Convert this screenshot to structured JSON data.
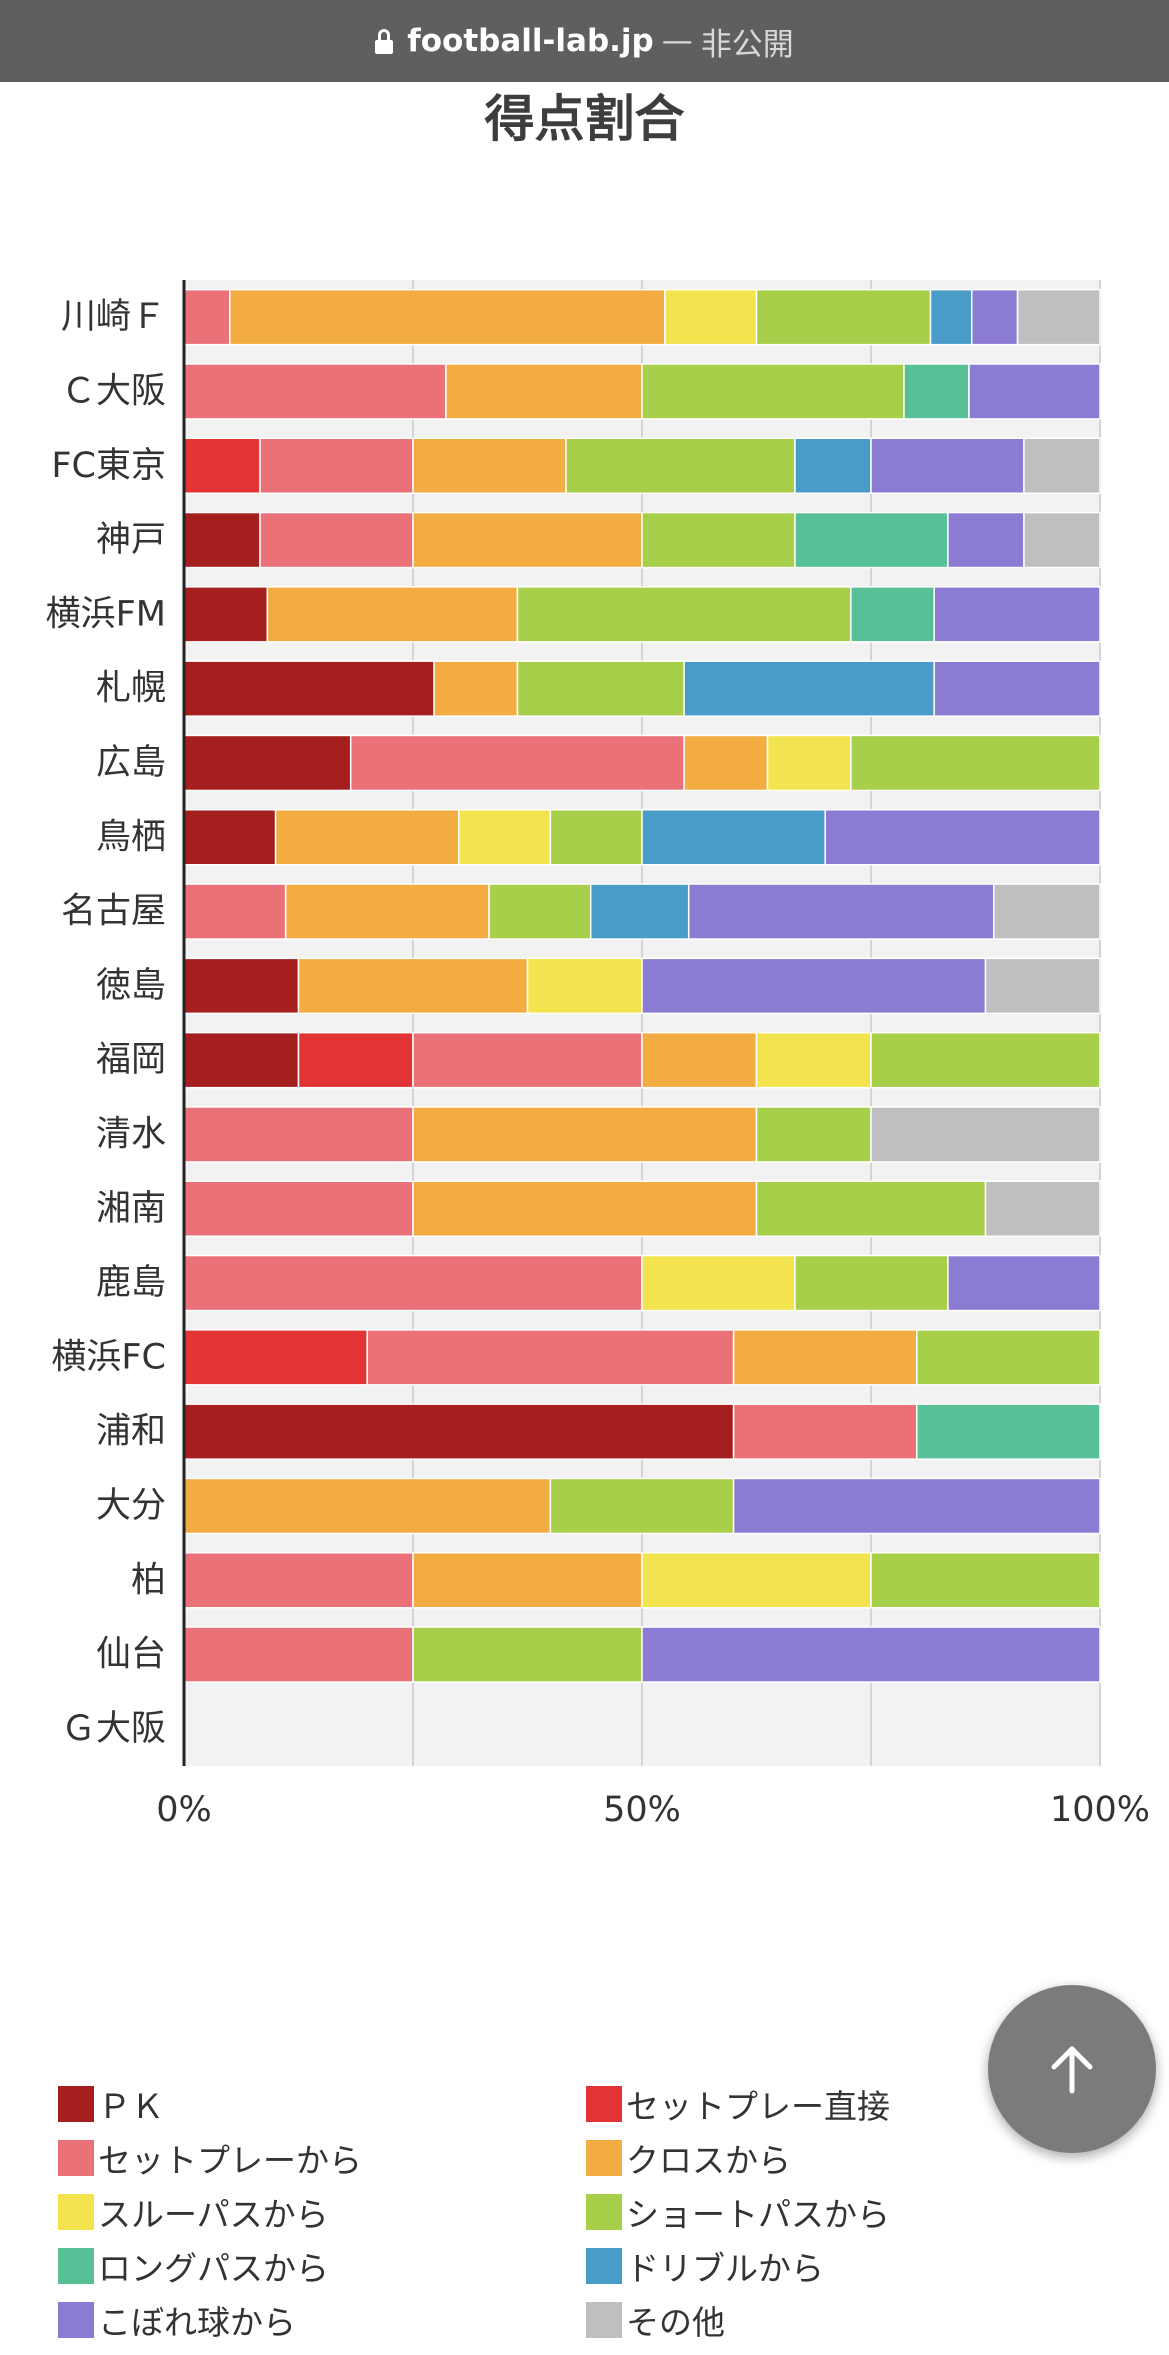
{
  "browser": {
    "domain": "football-lab.jp",
    "separator": "—",
    "status": "非公開"
  },
  "title": "得点割合",
  "chart_data": {
    "type": "bar",
    "orientation": "horizontal",
    "stacked": true,
    "normalized": true,
    "title": "得点割合",
    "xlim": [
      0,
      100
    ],
    "x_ticks": [
      "0%",
      "50%",
      "100%"
    ],
    "grid": true,
    "legend_position": "bottom",
    "categories": [
      "川崎Ｆ",
      "Ｃ大阪",
      "FC東京",
      "神戸",
      "横浜FM",
      "札幌",
      "広島",
      "鳥栖",
      "名古屋",
      "徳島",
      "福岡",
      "清水",
      "湘南",
      "鹿島",
      "横浜FC",
      "浦和",
      "大分",
      "柏",
      "仙台",
      "Ｇ大阪"
    ],
    "series": [
      {
        "name": "ＰＫ",
        "color": "#a61f1f",
        "values": [
          0,
          0,
          0,
          8.3,
          9.1,
          27.3,
          18.2,
          10,
          0,
          12.5,
          12.5,
          0,
          0,
          0,
          0,
          60,
          0,
          0,
          0,
          0
        ]
      },
      {
        "name": "セットプレー直接",
        "color": "#e23434",
        "values": [
          0,
          0,
          8.3,
          0,
          0,
          0,
          0,
          0,
          0,
          0,
          12.5,
          0,
          0,
          0,
          20,
          0,
          0,
          0,
          0,
          0
        ]
      },
      {
        "name": "セットプレーから",
        "color": "#ea7178",
        "values": [
          5,
          28.6,
          16.7,
          16.7,
          0,
          0,
          36.4,
          0,
          11.1,
          0,
          25,
          25,
          25,
          50,
          40,
          20,
          0,
          25,
          25,
          0
        ]
      },
      {
        "name": "クロスから",
        "color": "#f3ac41",
        "values": [
          47.5,
          21.4,
          16.7,
          25,
          27.3,
          9.1,
          9.1,
          20,
          22.2,
          25,
          12.5,
          37.5,
          37.5,
          0,
          20,
          0,
          40,
          25,
          0,
          0
        ]
      },
      {
        "name": "スルーパスから",
        "color": "#f2e34f",
        "values": [
          10,
          0,
          0,
          0,
          0,
          0,
          9.1,
          10,
          0,
          12.5,
          12.5,
          0,
          0,
          16.7,
          0,
          0,
          0,
          25,
          0,
          0
        ]
      },
      {
        "name": "ショートパスから",
        "color": "#a7cf4a",
        "values": [
          19,
          28.6,
          25,
          16.7,
          36.4,
          18.2,
          27.2,
          10,
          11.1,
          0,
          25,
          12.5,
          25,
          16.7,
          20,
          0,
          20,
          25,
          25,
          0
        ]
      },
      {
        "name": "ロングパスから",
        "color": "#58c096",
        "values": [
          0,
          7.1,
          0,
          16.7,
          9.1,
          0,
          0,
          0,
          0,
          0,
          0,
          0,
          0,
          0,
          0,
          20,
          0,
          0,
          0,
          0
        ]
      },
      {
        "name": "ドリブルから",
        "color": "#4a9cc8",
        "values": [
          4.5,
          0,
          8.3,
          0,
          0,
          27.3,
          0,
          20,
          10.7,
          0,
          0,
          0,
          0,
          0,
          0,
          0,
          0,
          0,
          0,
          0
        ]
      },
      {
        "name": "こぼれ球から",
        "color": "#8c7bd2",
        "values": [
          5,
          14.3,
          16.7,
          8.3,
          18.1,
          18.1,
          0,
          30,
          33.3,
          37.5,
          0,
          0,
          0,
          16.6,
          0,
          0,
          40,
          0,
          50,
          0
        ]
      },
      {
        "name": "その他",
        "color": "#bfbfbf",
        "values": [
          9,
          0,
          8.3,
          8.3,
          0,
          0,
          0,
          0,
          11.6,
          12.5,
          0,
          25,
          12.5,
          0,
          0,
          0,
          0,
          0,
          0,
          0
        ]
      }
    ]
  },
  "legend_columns": [
    [
      "ＰＫ",
      "セットプレーから",
      "スルーパスから",
      "ロングパスから",
      "こぼれ球から"
    ],
    [
      "セットプレー直接",
      "クロスから",
      "ショートパスから",
      "ドリブルから",
      "その他"
    ]
  ],
  "scroll_top_button": {
    "icon": "arrow-up-icon"
  }
}
